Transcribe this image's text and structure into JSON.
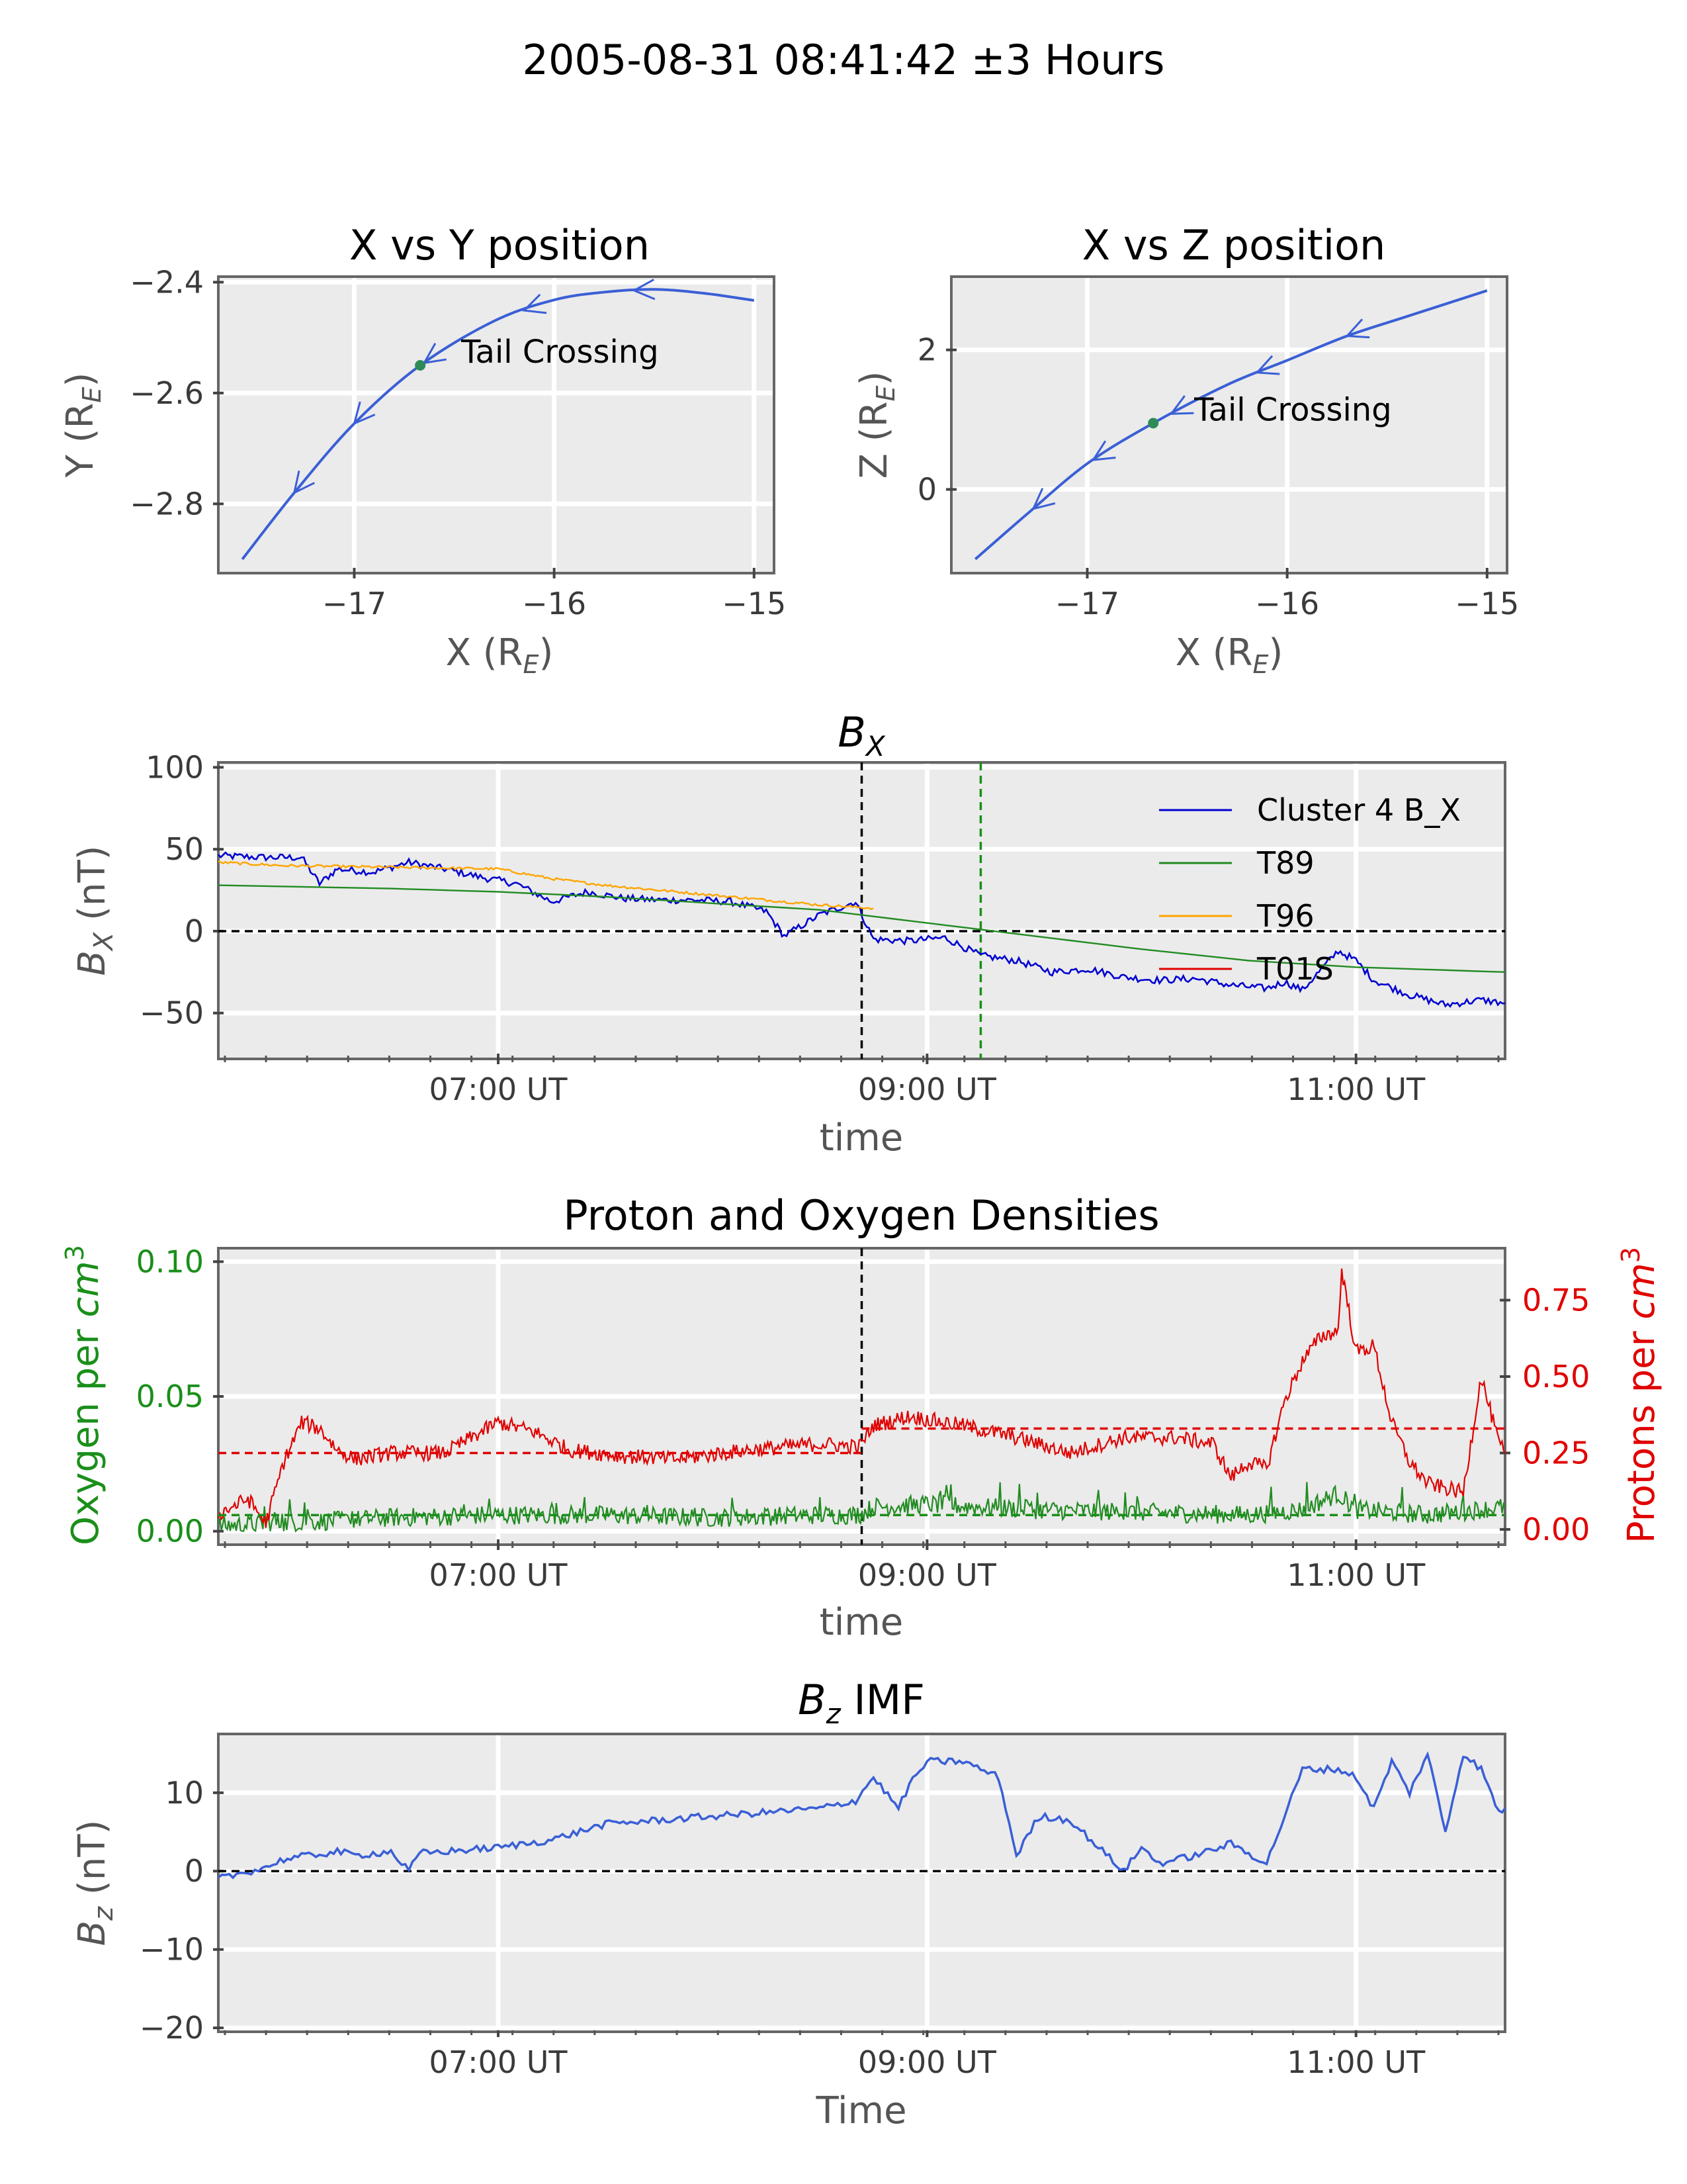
{
  "suptitle": "2005-08-31 08:41:42 ±3 Hours",
  "chart_data": [
    {
      "id": "xy",
      "type": "line",
      "title": "X vs Y position",
      "xlabel": "X (R_E)",
      "ylabel": "Y (R_E)",
      "xlim": [
        -17.68,
        -14.9
      ],
      "ylim": [
        -2.925,
        -2.39
      ],
      "xticks": [
        -17,
        -16,
        -15
      ],
      "yticks": [
        -2.8,
        -2.6,
        -2.4
      ],
      "grid": true,
      "color": "#3a5fd6",
      "series": [
        {
          "x": [
            -17.56,
            -17.3,
            -17.0,
            -16.67,
            -16.3,
            -16.0,
            -15.75,
            -15.5,
            -15.25,
            -15.0
          ],
          "y": [
            -2.9,
            -2.78,
            -2.655,
            -2.55,
            -2.47,
            -2.432,
            -2.418,
            -2.413,
            -2.42,
            -2.433
          ]
        }
      ],
      "arrows_x": [
        -17.3,
        -17.0,
        -16.65,
        -16.15,
        -15.6
      ],
      "marker": {
        "x": -16.67,
        "y": -2.55,
        "color": "#2e8b57",
        "label": "Tail Crossing"
      }
    },
    {
      "id": "xz",
      "type": "line",
      "title": "X vs Z position",
      "xlabel": "X (R_E)",
      "ylabel": "Z (R_E)",
      "xlim": [
        -17.68,
        -14.9
      ],
      "ylim": [
        -1.2,
        3.05
      ],
      "xticks": [
        -17,
        -16,
        -15
      ],
      "yticks": [
        0,
        2
      ],
      "grid": true,
      "color": "#3a5fd6",
      "series": [
        {
          "x": [
            -17.56,
            -17.3,
            -17.0,
            -16.67,
            -16.3,
            -16.0,
            -15.7,
            -15.4,
            -15.0
          ],
          "y": [
            -1.0,
            -0.35,
            0.37,
            0.95,
            1.5,
            1.85,
            2.2,
            2.48,
            2.85
          ]
        }
      ],
      "arrows_x": [
        -17.27,
        -16.97,
        -16.58,
        -16.15,
        -15.7
      ],
      "marker": {
        "x": -16.67,
        "y": 0.95,
        "color": "#2e8b57",
        "label": "Tail Crossing"
      }
    },
    {
      "id": "bx",
      "type": "line",
      "title": "B_X",
      "xlabel": "time",
      "ylabel": "B_X (nT)",
      "xlim": [
        "05:41:42",
        "11:41:42"
      ],
      "ylim": [
        -78,
        103
      ],
      "xticks": [
        "07:00 UT",
        "09:00 UT",
        "11:00 UT"
      ],
      "yticks": [
        -50,
        0,
        50,
        100
      ],
      "grid": true,
      "legend": "top-right",
      "hlines": [
        {
          "y": 0,
          "style": "dashed",
          "color": "#000000"
        }
      ],
      "vlines": [
        {
          "x": "08:41:42",
          "color": "#000000",
          "style": "dashed"
        },
        {
          "x": "09:15",
          "color": "#1a8f1a",
          "style": "dashed"
        }
      ],
      "series": [
        {
          "name": "Cluster 4 B_X",
          "color": "#0000d0",
          "x": [
            "05:41:42",
            "05:55",
            "06:05",
            "06:10",
            "06:15",
            "06:25",
            "06:35",
            "06:45",
            "06:55",
            "07:05",
            "07:15",
            "07:25",
            "07:35",
            "07:45",
            "07:55",
            "08:05",
            "08:15",
            "08:20",
            "08:30",
            "08:40",
            "08:45",
            "08:55",
            "09:05",
            "09:15",
            "09:25",
            "09:35",
            "09:45",
            "09:55",
            "10:05",
            "10:15",
            "10:25",
            "10:35",
            "10:40",
            "10:45",
            "10:55",
            "11:00",
            "11:05",
            "11:15",
            "11:25",
            "11:35",
            "11:41:42"
          ],
          "y": [
            46,
            45,
            45,
            29,
            38,
            36,
            42,
            38,
            33,
            29,
            18,
            24,
            20,
            19,
            19,
            18,
            12,
            -3,
            10,
            18,
            -5,
            -6,
            -4,
            -15,
            -18,
            -25,
            -23,
            -28,
            -30,
            -29,
            -33,
            -35,
            -31,
            -36,
            -12,
            -18,
            -30,
            -39,
            -45,
            -42,
            -44
          ]
        },
        {
          "name": "T89",
          "color": "#228b22",
          "x": [
            "05:41:42",
            "06:30",
            "07:00",
            "07:30",
            "08:00",
            "08:30",
            "09:00",
            "09:15",
            "09:30",
            "10:00",
            "10:30",
            "11:00",
            "11:41:42"
          ],
          "y": [
            28,
            26,
            24,
            21,
            17,
            13,
            5,
            1,
            -3,
            -11,
            -18,
            -22,
            -25
          ]
        },
        {
          "name": "T96",
          "color": "#ffa500",
          "x": [
            "05:41:42",
            "06:00",
            "06:30",
            "07:00",
            "07:15",
            "07:30",
            "08:00",
            "08:30",
            "08:45"
          ],
          "y": [
            42,
            40,
            39,
            38,
            32,
            28,
            22,
            16,
            14
          ]
        },
        {
          "name": "T01S",
          "color": "#e00000",
          "x": [],
          "y": []
        }
      ]
    },
    {
      "id": "dens",
      "type": "line",
      "title": "Proton and Oxygen Densities",
      "xlabel": "time",
      "ylabel": "Oxygen per cm^3",
      "ylabel_right": "Protons per cm^3",
      "xlim": [
        "05:41:42",
        "11:41:42"
      ],
      "ylim": [
        -0.005,
        0.105
      ],
      "ylim_right": [
        -0.05,
        0.92
      ],
      "xticks": [
        "07:00 UT",
        "09:00 UT",
        "11:00 UT"
      ],
      "yticks": [
        0.0,
        0.05,
        0.1
      ],
      "yticks_right": [
        0.0,
        0.25,
        0.5,
        0.75
      ],
      "grid": true,
      "vlines": [
        {
          "x": "08:41:42",
          "color": "#000000",
          "style": "dashed"
        }
      ],
      "hlines": [
        {
          "axis": "left",
          "y": 0.006,
          "color": "#1a8f1a",
          "style": "dashed"
        },
        {
          "axis": "right",
          "y": 0.25,
          "color": "#e00000",
          "style": "dashed",
          "x_end": "08:41:42"
        },
        {
          "axis": "right",
          "y": 0.33,
          "color": "#e00000",
          "style": "dashed",
          "x_start": "08:41:42"
        }
      ],
      "series": [
        {
          "name": "Oxygen",
          "axis": "left",
          "color": "#228b22",
          "x": [
            "05:41:42",
            "06:00",
            "06:30",
            "07:00",
            "07:30",
            "08:00",
            "08:30",
            "08:41",
            "08:45",
            "09:00",
            "09:30",
            "10:00",
            "10:30",
            "10:45",
            "10:55",
            "11:00",
            "11:20",
            "11:41:42"
          ],
          "y": [
            0.002,
            0.003,
            0.005,
            0.006,
            0.006,
            0.005,
            0.006,
            0.006,
            0.009,
            0.01,
            0.008,
            0.007,
            0.006,
            0.008,
            0.014,
            0.008,
            0.006,
            0.009
          ]
        },
        {
          "name": "Protons",
          "axis": "right",
          "color": "#e00000",
          "x": [
            "05:41:42",
            "05:50",
            "05:55",
            "06:00",
            "06:05",
            "06:10",
            "06:15",
            "06:20",
            "06:30",
            "06:45",
            "07:00",
            "07:10",
            "07:20",
            "07:35",
            "07:50",
            "08:10",
            "08:30",
            "08:41",
            "08:45",
            "08:55",
            "09:10",
            "09:25",
            "09:40",
            "09:55",
            "10:10",
            "10:20",
            "10:25",
            "10:30",
            "10:35",
            "10:40",
            "10:45",
            "10:50",
            "10:55",
            "10:56",
            "11:00",
            "11:05",
            "11:10",
            "11:15",
            "11:20",
            "11:30",
            "11:35",
            "11:40",
            "11:41:42"
          ],
          "y": [
            0.05,
            0.1,
            0.02,
            0.22,
            0.35,
            0.33,
            0.26,
            0.23,
            0.25,
            0.25,
            0.35,
            0.32,
            0.26,
            0.24,
            0.23,
            0.26,
            0.28,
            0.27,
            0.34,
            0.37,
            0.34,
            0.3,
            0.25,
            0.3,
            0.3,
            0.28,
            0.17,
            0.22,
            0.2,
            0.42,
            0.55,
            0.63,
            0.65,
            0.85,
            0.58,
            0.6,
            0.35,
            0.22,
            0.15,
            0.12,
            0.5,
            0.28,
            0.25
          ]
        }
      ]
    },
    {
      "id": "bz",
      "type": "line",
      "title": "B_z IMF",
      "xlabel": "Time",
      "ylabel": "B_z (nT)",
      "xlim": [
        "05:41:42",
        "11:41:42"
      ],
      "ylim": [
        -20.5,
        17.5
      ],
      "xticks": [
        "07:00 UT",
        "09:00 UT",
        "11:00 UT"
      ],
      "yticks": [
        -20,
        -10,
        0,
        10
      ],
      "grid": true,
      "hlines": [
        {
          "y": 0,
          "style": "dashed",
          "color": "#000000"
        }
      ],
      "series": [
        {
          "name": "B_z",
          "color": "#3a5fd6",
          "x": [
            "05:41:42",
            "05:55",
            "06:00",
            "06:15",
            "06:20",
            "06:30",
            "06:35",
            "06:38",
            "06:45",
            "07:00",
            "07:15",
            "07:30",
            "08:00",
            "08:30",
            "08:40",
            "08:45",
            "08:52",
            "08:55",
            "09:00",
            "09:10",
            "09:20",
            "09:25",
            "09:30",
            "09:32",
            "09:40",
            "09:55",
            "10:00",
            "10:05",
            "10:15",
            "10:25",
            "10:35",
            "10:45",
            "10:55",
            "11:00",
            "11:05",
            "11:10",
            "11:15",
            "11:20",
            "11:25",
            "11:30",
            "11:35",
            "11:40",
            "11:41:42"
          ],
          "y": [
            -1,
            0.5,
            1.5,
            2.5,
            2,
            2.5,
            0,
            2.3,
            2.5,
            3,
            4,
            6,
            7,
            8,
            9,
            12,
            8,
            11,
            14,
            14,
            12,
            2,
            6,
            7,
            6.5,
            0,
            3,
            1,
            2,
            3.5,
            1,
            13,
            13,
            12,
            8,
            14,
            10,
            15,
            5,
            15,
            13,
            7.5,
            8
          ]
        }
      ]
    }
  ],
  "xticks_minor_count": 31
}
